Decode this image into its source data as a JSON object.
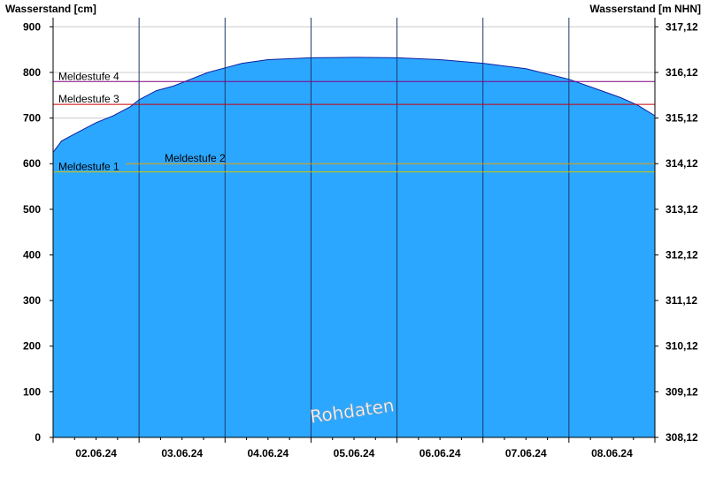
{
  "chart_data": {
    "type": "area",
    "title": "",
    "ylabel_left": "Wasserstand [cm]",
    "ylabel_right": "Wasserstand [m NHN]",
    "ylim": [
      0,
      920
    ],
    "yticks_left": [
      0,
      100,
      200,
      300,
      400,
      500,
      600,
      700,
      800,
      900
    ],
    "yticks_right": [
      "308,12",
      "309,12",
      "310,12",
      "311,12",
      "312,12",
      "313,12",
      "314,12",
      "315,12",
      "316,12",
      "317,12"
    ],
    "xlim": [
      0,
      7
    ],
    "day_boundaries": [
      1,
      2,
      3,
      4,
      5,
      6
    ],
    "x_tick_labels": [
      {
        "x": 0.5,
        "label": "02.06.24"
      },
      {
        "x": 1.5,
        "label": "03.06.24"
      },
      {
        "x": 2.5,
        "label": "04.06.24"
      },
      {
        "x": 3.5,
        "label": "05.06.24"
      },
      {
        "x": 4.5,
        "label": "06.06.24"
      },
      {
        "x": 5.5,
        "label": "07.06.24"
      },
      {
        "x": 6.5,
        "label": "08.06.24"
      }
    ],
    "series": [
      {
        "x": [
          0,
          0.1,
          0.3,
          0.5,
          0.7,
          0.9,
          1.0,
          1.2,
          1.4,
          1.6,
          1.8,
          2.0,
          2.2,
          2.5,
          3.0,
          3.5,
          4.0,
          4.5,
          5.0,
          5.5,
          6.0,
          6.3,
          6.6,
          6.8,
          7.0
        ],
        "values": [
          625,
          650,
          670,
          690,
          705,
          725,
          740,
          760,
          770,
          785,
          800,
          810,
          820,
          828,
          832,
          833,
          832,
          828,
          820,
          808,
          785,
          765,
          745,
          728,
          705
        ]
      }
    ],
    "thresholds": [
      {
        "name": "Meldestufe 1",
        "value": 582,
        "color": "#d4c200"
      },
      {
        "name": "Meldestufe 2",
        "value": 600,
        "color": "#e8a000"
      },
      {
        "name": "Meldestufe 3",
        "value": 730,
        "color": "#cc0000"
      },
      {
        "name": "Meldestufe 4",
        "value": 780,
        "color": "#800080"
      }
    ],
    "area_color": "#2ca7ff",
    "line_color": "#1020a0",
    "grid": true
  },
  "watermark": "Rohdaten"
}
